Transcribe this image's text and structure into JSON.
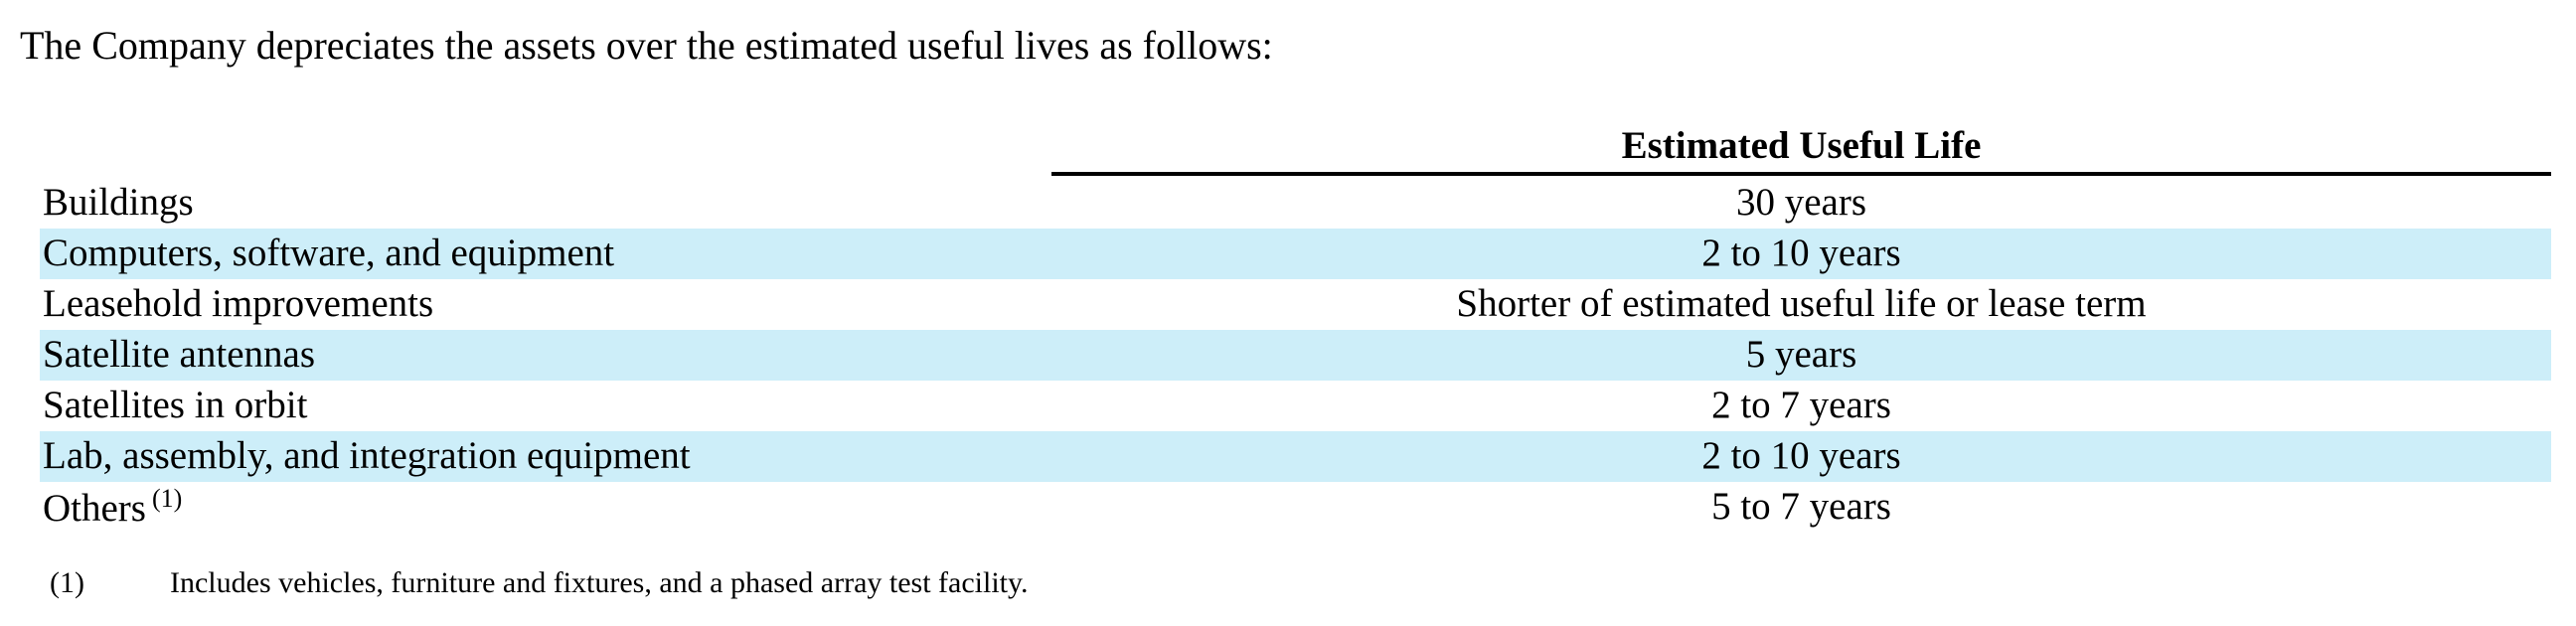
{
  "intro": "The Company depreciates the assets over the estimated useful lives as follows:",
  "table": {
    "header": "Estimated Useful Life",
    "rows": [
      {
        "asset": "Buildings",
        "life": "30 years"
      },
      {
        "asset": "Computers, software, and equipment",
        "life": "2 to 10 years"
      },
      {
        "asset": "Leasehold improvements",
        "life": "Shorter of estimated useful life or lease term"
      },
      {
        "asset": "Satellite antennas",
        "life": "5 years"
      },
      {
        "asset": "Satellites in orbit",
        "life": "2 to 7 years"
      },
      {
        "asset": "Lab, assembly, and integration equipment",
        "life": "2 to 10 years"
      },
      {
        "asset": "Others",
        "note_ref": "(1)",
        "life": "5 to 7 years"
      }
    ]
  },
  "footnote": {
    "marker": "(1)",
    "text": "Includes vehicles, furniture and fixtures, and a phased array test facility."
  }
}
